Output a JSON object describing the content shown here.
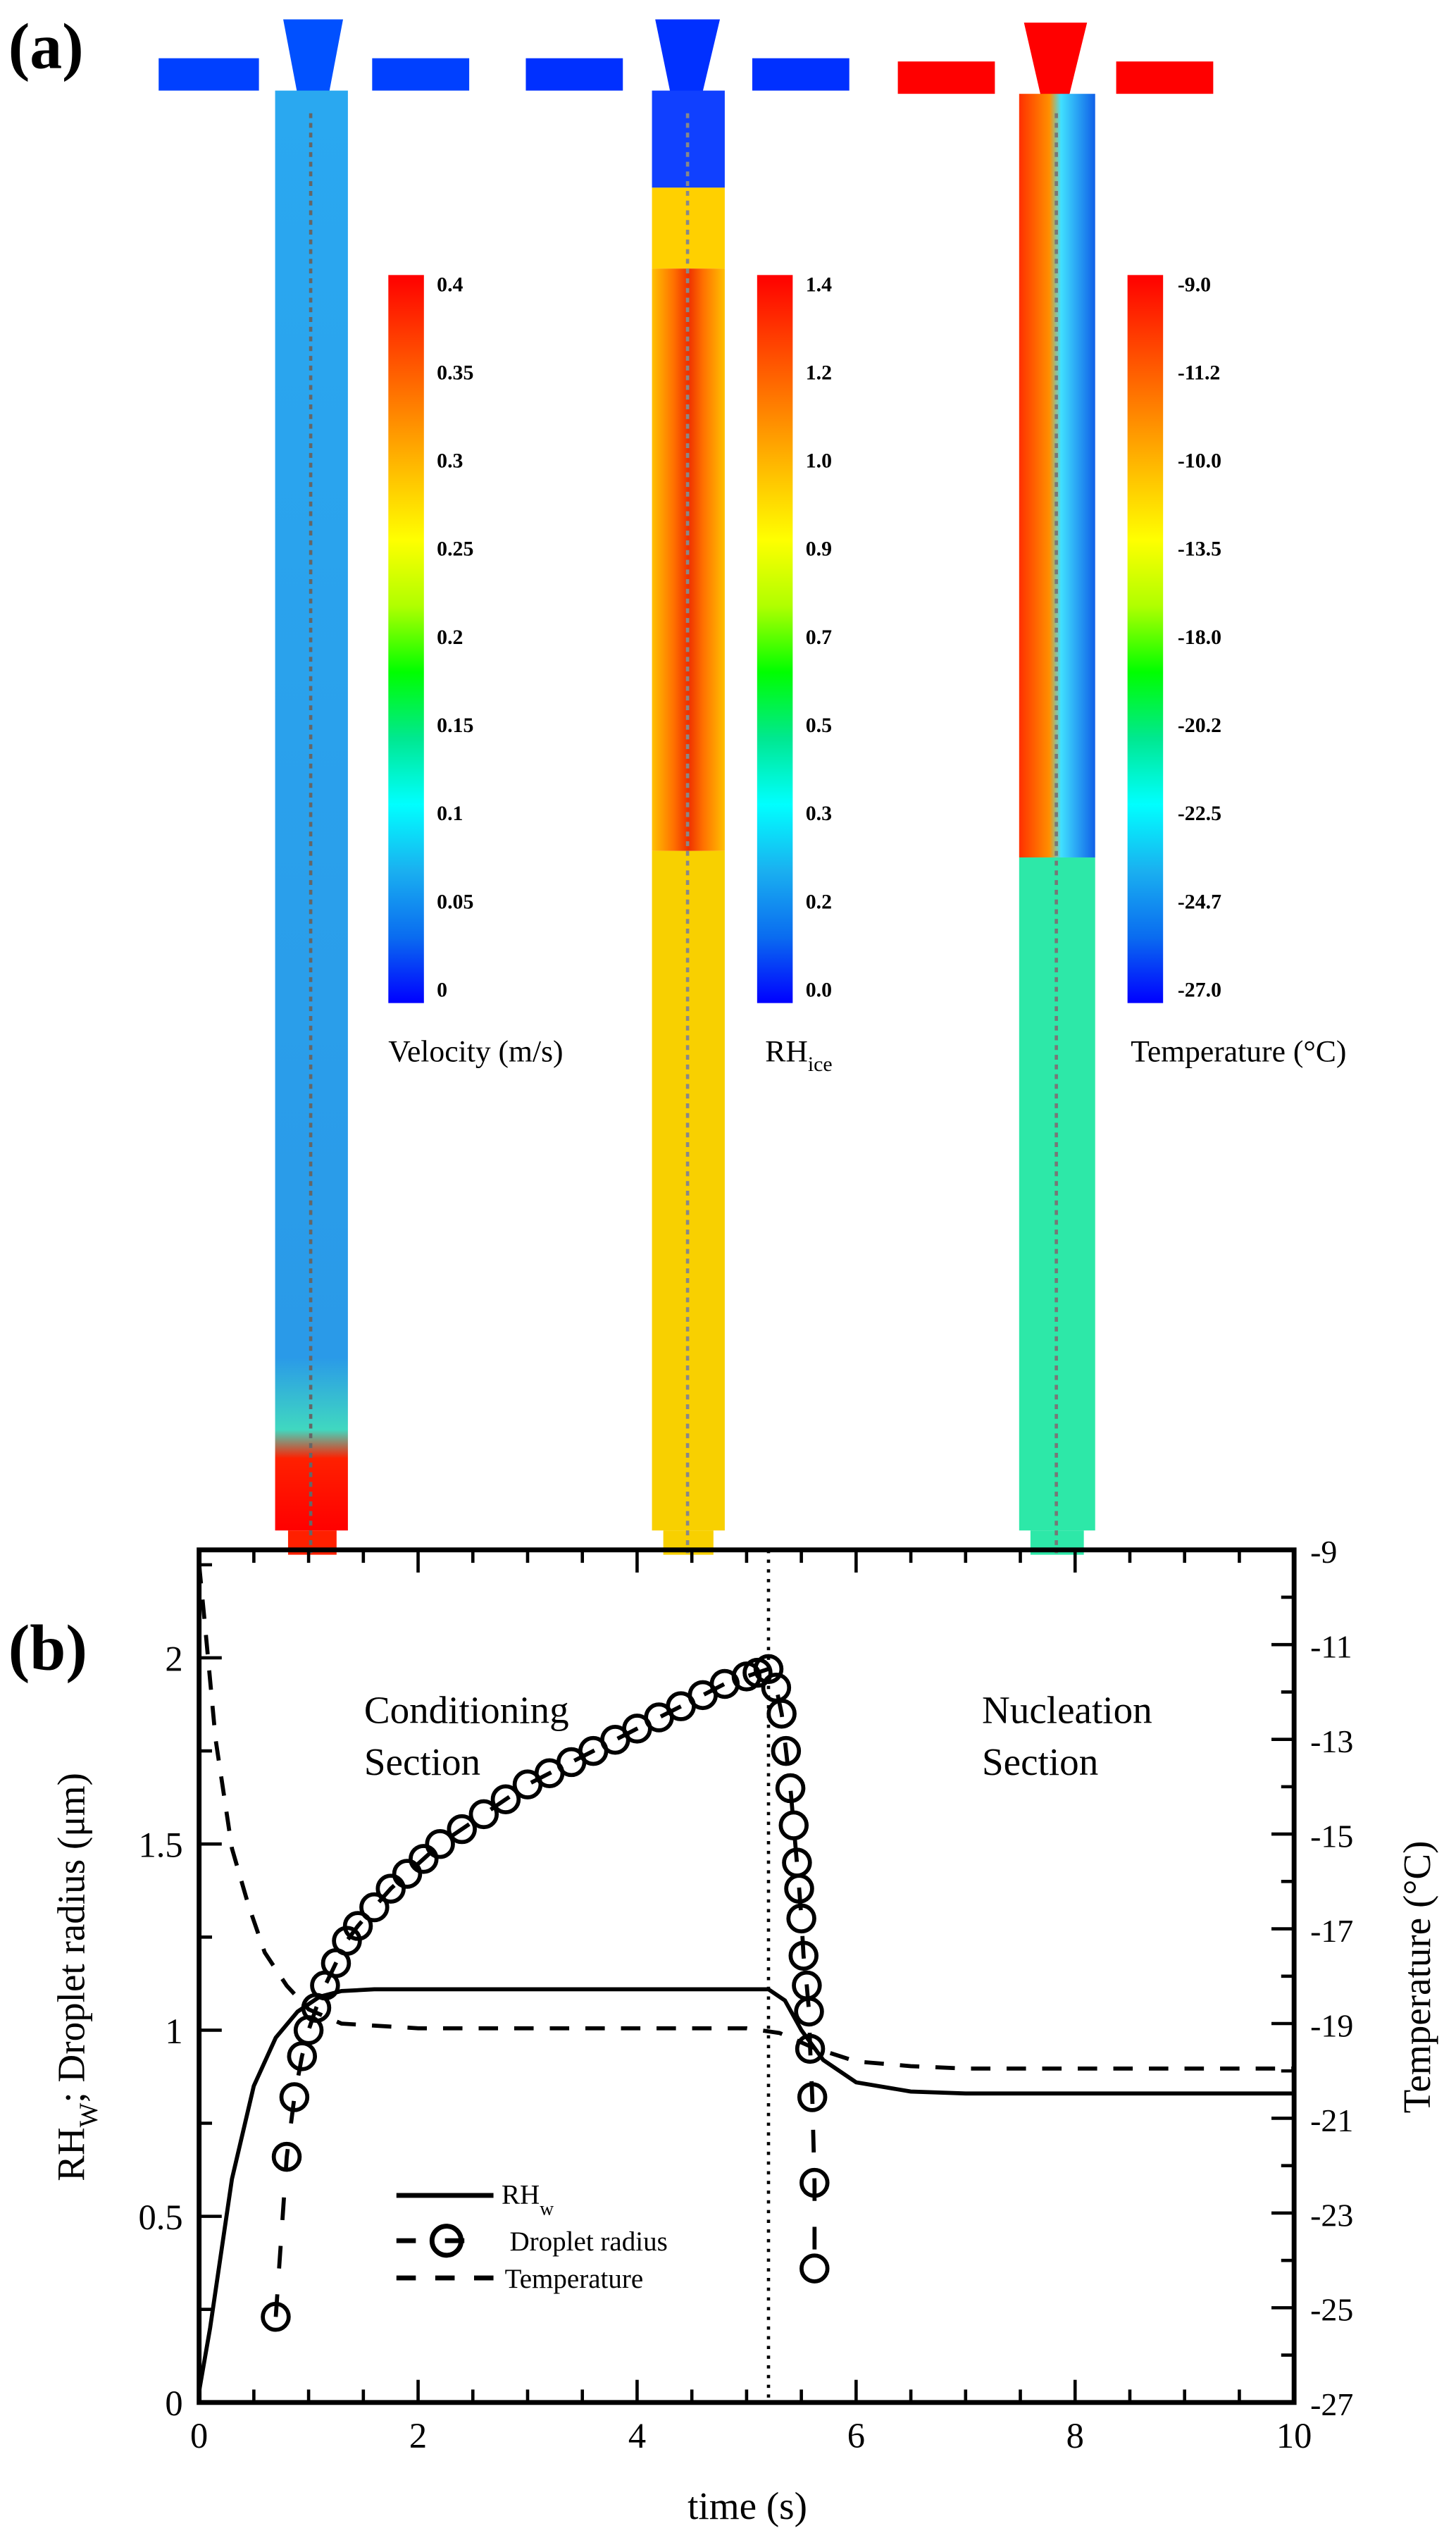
{
  "panel_a": {
    "label": "(a)",
    "colorbars": [
      {
        "caption": "Velocity (m/s)",
        "ticks": [
          "0.4",
          "0.35",
          "0.3",
          "0.25",
          "0.2",
          "0.15",
          "0.1",
          "0.05",
          "0"
        ]
      },
      {
        "caption": "RH",
        "caption_sub": "ice",
        "ticks": [
          "1.4",
          "1.2",
          "1.0",
          "0.9",
          "0.7",
          "0.5",
          "0.3",
          "0.2",
          "0.0"
        ]
      },
      {
        "caption": "Temperature (°C)",
        "ticks": [
          "-9.0",
          "-11.2",
          "-10.0",
          "-13.5",
          "-18.0",
          "-20.2",
          "-22.5",
          "-24.7",
          "-27.0"
        ]
      }
    ],
    "colormap": [
      "#0000ff",
      "#0a6cf0",
      "#1ab0f0",
      "#00ffff",
      "#00e890",
      "#00ff00",
      "#b0ff00",
      "#ffff00",
      "#ffc000",
      "#ff8000",
      "#ff4000",
      "#ff0000"
    ]
  },
  "panel_b": {
    "label": "(b)",
    "annotations": {
      "conditioning_1": "Conditioning",
      "conditioning_2": "Section",
      "nucleation_1": "Nucleation",
      "nucleation_2": "Section"
    },
    "legend": {
      "rh": "RH",
      "rh_sub": "w",
      "droplet": "Droplet radius",
      "temperature": "Temperature"
    }
  },
  "chart_data": {
    "type": "line",
    "xlabel": "time (s)",
    "ylabel": "RH",
    "ylabel_sub": "W",
    "ylabel_rest": "; Droplet radius (μm)",
    "y2label": "Temperature (°C)",
    "xlim": [
      0,
      10
    ],
    "ylim": [
      0,
      2.29
    ],
    "y2lim": [
      -27,
      -9
    ],
    "xticks": [
      "0",
      "2",
      "4",
      "6",
      "8",
      "10"
    ],
    "yticks": [
      "0",
      "0.5",
      "1",
      "1.5",
      "2"
    ],
    "y2ticks": [
      "-27",
      "-25",
      "-23",
      "-21",
      "-19",
      "-17",
      "-15",
      "-13",
      "-11",
      "-9"
    ],
    "vline_x": 5.2,
    "series": [
      {
        "name": "RHw",
        "axis": "left",
        "style": "solid",
        "x": [
          0,
          0.1,
          0.3,
          0.5,
          0.7,
          0.9,
          1.1,
          1.3,
          1.6,
          2,
          5.2,
          5.35,
          5.5,
          5.7,
          6,
          6.5,
          7,
          10
        ],
        "y": [
          0.03,
          0.2,
          0.6,
          0.85,
          0.98,
          1.05,
          1.09,
          1.105,
          1.11,
          1.11,
          1.11,
          1.08,
          1.0,
          0.92,
          0.86,
          0.835,
          0.83,
          0.83
        ]
      },
      {
        "name": "Droplet radius",
        "axis": "left",
        "style": "dashed-circle",
        "x": [
          0.7,
          0.8,
          0.87,
          0.94,
          1.0,
          1.07,
          1.15,
          1.25,
          1.35,
          1.45,
          1.6,
          1.75,
          1.9,
          2.05,
          2.2,
          2.4,
          2.6,
          2.8,
          3.0,
          3.2,
          3.4,
          3.6,
          3.8,
          4.0,
          4.2,
          4.4,
          4.6,
          4.8,
          5.0,
          5.1,
          5.2,
          5.27,
          5.32,
          5.36,
          5.4,
          5.43,
          5.46,
          5.48,
          5.5,
          5.52,
          5.55,
          5.57,
          5.58,
          5.6,
          5.62,
          5.62
        ],
        "y": [
          0.23,
          0.66,
          0.82,
          0.93,
          1.0,
          1.06,
          1.12,
          1.18,
          1.24,
          1.28,
          1.33,
          1.38,
          1.42,
          1.46,
          1.5,
          1.54,
          1.58,
          1.62,
          1.66,
          1.69,
          1.72,
          1.75,
          1.78,
          1.81,
          1.84,
          1.87,
          1.9,
          1.93,
          1.95,
          1.96,
          1.97,
          1.92,
          1.85,
          1.75,
          1.65,
          1.55,
          1.45,
          1.38,
          1.3,
          1.2,
          1.12,
          1.05,
          0.95,
          0.82,
          0.59,
          0.36
        ]
      },
      {
        "name": "Temperature",
        "axis": "right",
        "style": "dashed",
        "x": [
          0,
          0.05,
          0.15,
          0.3,
          0.45,
          0.6,
          0.8,
          1.0,
          1.3,
          2,
          5,
          5.3,
          5.6,
          6,
          6.5,
          7,
          10
        ],
        "y": [
          -9.3,
          -10.5,
          -13,
          -15.3,
          -16.5,
          -17.5,
          -18.2,
          -18.7,
          -19.0,
          -19.1,
          -19.1,
          -19.2,
          -19.5,
          -19.8,
          -19.9,
          -19.95,
          -19.95
        ]
      }
    ]
  }
}
